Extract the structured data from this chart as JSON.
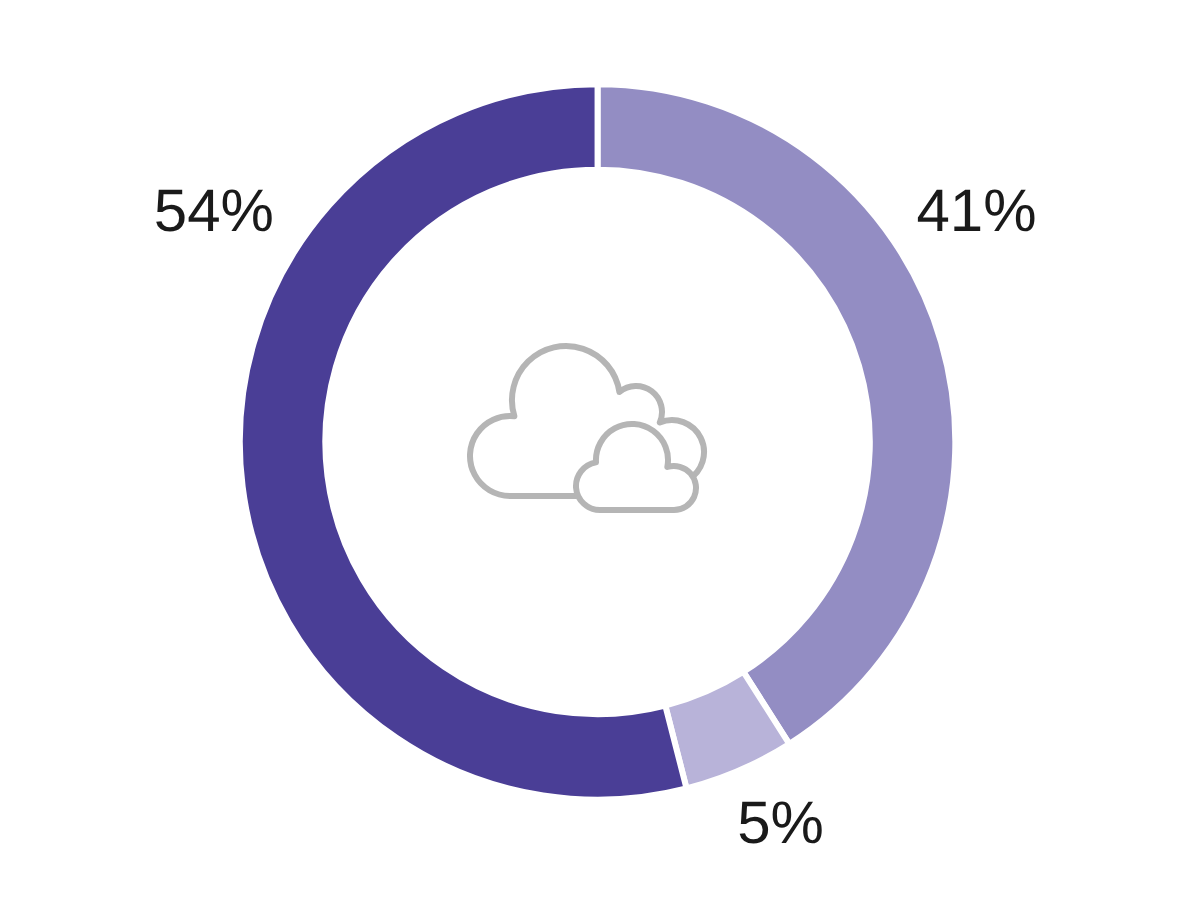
{
  "chart_data": {
    "type": "donut",
    "categories": [
      null,
      null,
      null
    ],
    "values": [
      41,
      5,
      54
    ],
    "colors": [
      "#938dc3",
      "#b8b3d9",
      "#4a3e96"
    ],
    "value_labels": [
      "41%",
      "5%",
      "54%"
    ]
  }
}
